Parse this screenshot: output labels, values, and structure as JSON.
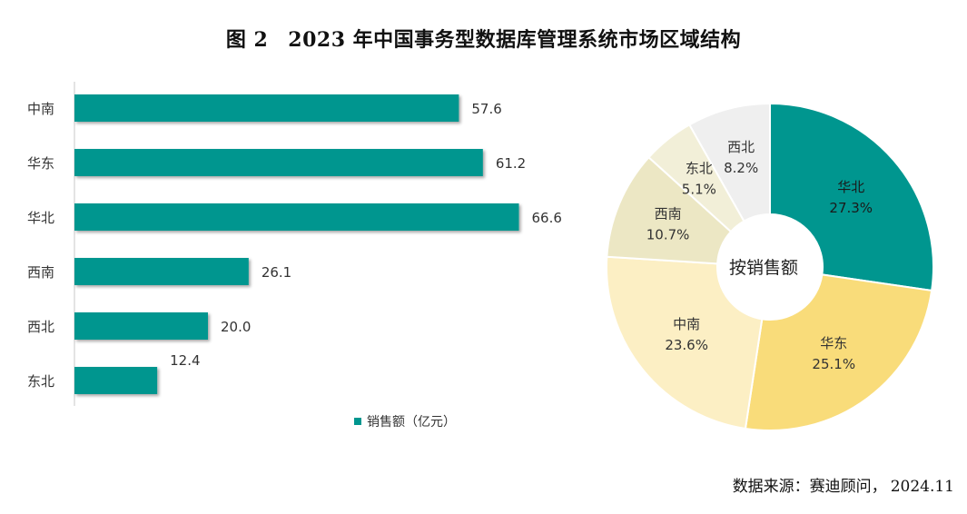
{
  "title": {
    "figure_no": "图 2",
    "text": "2023 年中国事务型数据库管理系统市场区域结构"
  },
  "source": {
    "label": "数据来源：赛迪顾问，",
    "date": "2024.11"
  },
  "colors": {
    "bar": "#00968f",
    "pie_huabei": "#00968f",
    "pie_huadong": "#f9dc7a",
    "pie_zhongnan": "#fcefc4",
    "pie_xinan": "#ece7c4",
    "pie_dongbei": "#f2efd8",
    "pie_xibei": "#efefef"
  },
  "chart_data": [
    {
      "type": "bar",
      "orientation": "horizontal",
      "categories": [
        "中南",
        "华东",
        "华北",
        "西南",
        "西北",
        "东北"
      ],
      "values": [
        57.6,
        61.2,
        66.6,
        26.1,
        20.0,
        12.4
      ],
      "value_labels": [
        "57.6",
        "61.2",
        "66.6",
        "26.1",
        "20.0",
        "12.4"
      ],
      "legend": [
        "销售额（亿元）"
      ],
      "xlim": [
        0,
        70
      ]
    },
    {
      "type": "pie",
      "style": "donut",
      "center_label": "按销售额",
      "slices": [
        {
          "label": "华北",
          "value": 27.3,
          "pct_label": "27.3%"
        },
        {
          "label": "华东",
          "value": 25.1,
          "pct_label": "25.1%"
        },
        {
          "label": "中南",
          "value": 23.6,
          "pct_label": "23.6%"
        },
        {
          "label": "西南",
          "value": 10.7,
          "pct_label": "10.7%"
        },
        {
          "label": "东北",
          "value": 5.1,
          "pct_label": "5.1%"
        },
        {
          "label": "西北",
          "value": 8.2,
          "pct_label": "8.2%"
        }
      ]
    }
  ]
}
